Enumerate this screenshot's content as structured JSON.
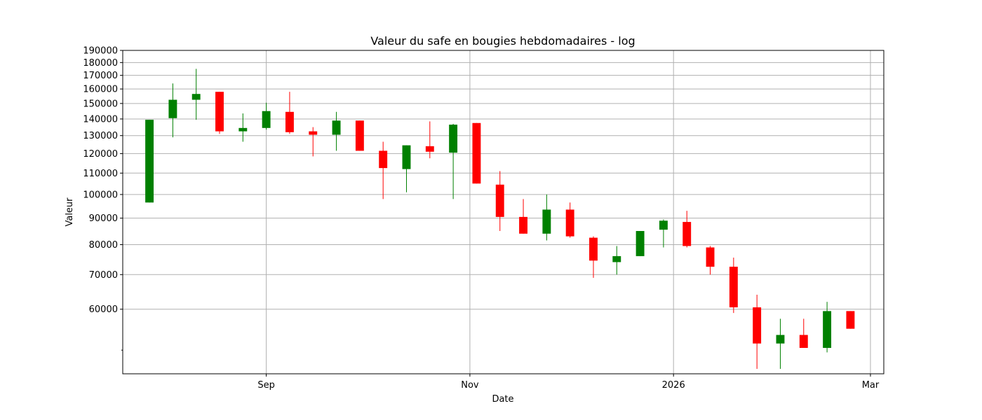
{
  "chart_data": {
    "type": "candlestick",
    "title": "Valeur du safe en bougies hebdomadaires - log",
    "xlabel": "Date",
    "ylabel": "Valeur",
    "y_scale": "log",
    "ylim": [
      45000,
      190000
    ],
    "xlim": [
      "2025-07-20",
      "2026-03-05"
    ],
    "grid": true,
    "up_color": "#008000",
    "down_color": "#ff0000",
    "x_ticks": [
      {
        "date": "2025-09-01",
        "label": "Sep"
      },
      {
        "date": "2025-11-01",
        "label": "Nov"
      },
      {
        "date": "2026-01-01",
        "label": "2026"
      },
      {
        "date": "2026-03-01",
        "label": "Mar"
      }
    ],
    "y_ticks": [
      {
        "value": 60000,
        "label": "60000"
      },
      {
        "value": 70000,
        "label": "70000"
      },
      {
        "value": 80000,
        "label": "80000"
      },
      {
        "value": 90000,
        "label": "90000"
      },
      {
        "value": 100000,
        "label": "100000"
      },
      {
        "value": 110000,
        "label": "110000"
      },
      {
        "value": 120000,
        "label": "120000"
      },
      {
        "value": 130000,
        "label": "130000"
      },
      {
        "value": 140000,
        "label": "140000"
      },
      {
        "value": 150000,
        "label": "150000"
      },
      {
        "value": 160000,
        "label": "160000"
      },
      {
        "value": 170000,
        "label": "170000"
      },
      {
        "value": 180000,
        "label": "180000"
      },
      {
        "value": 190000,
        "label": "190000"
      }
    ],
    "y_minor_ticks": [
      50000
    ],
    "candles": [
      {
        "date": "2025-07-28",
        "open": 96500,
        "high": 139500,
        "low": 96500,
        "close": 139500
      },
      {
        "date": "2025-08-04",
        "open": 140500,
        "high": 164000,
        "low": 129000,
        "close": 152500
      },
      {
        "date": "2025-08-11",
        "open": 152500,
        "high": 175000,
        "low": 139500,
        "close": 156500
      },
      {
        "date": "2025-08-18",
        "open": 158000,
        "high": 158000,
        "low": 131000,
        "close": 132500
      },
      {
        "date": "2025-08-25",
        "open": 132500,
        "high": 143500,
        "low": 126500,
        "close": 134500
      },
      {
        "date": "2025-09-01",
        "open": 134500,
        "high": 150500,
        "low": 133500,
        "close": 145000
      },
      {
        "date": "2025-09-08",
        "open": 144500,
        "high": 158000,
        "low": 131000,
        "close": 132000
      },
      {
        "date": "2025-09-15",
        "open": 132500,
        "high": 135000,
        "low": 118500,
        "close": 130500
      },
      {
        "date": "2025-09-22",
        "open": 130500,
        "high": 144500,
        "low": 121500,
        "close": 139000
      },
      {
        "date": "2025-09-29",
        "open": 139000,
        "high": 139000,
        "low": 121500,
        "close": 121500
      },
      {
        "date": "2025-10-06",
        "open": 121500,
        "high": 126500,
        "low": 98000,
        "close": 112500
      },
      {
        "date": "2025-10-13",
        "open": 112000,
        "high": 124500,
        "low": 101000,
        "close": 124500
      },
      {
        "date": "2025-10-20",
        "open": 124000,
        "high": 138500,
        "low": 117500,
        "close": 121000
      },
      {
        "date": "2025-10-27",
        "open": 120500,
        "high": 137000,
        "low": 98000,
        "close": 136500
      },
      {
        "date": "2025-11-03",
        "open": 137500,
        "high": 137500,
        "low": 105000,
        "close": 105000
      },
      {
        "date": "2025-11-10",
        "open": 104500,
        "high": 111000,
        "low": 85000,
        "close": 90500
      },
      {
        "date": "2025-11-17",
        "open": 90500,
        "high": 98000,
        "low": 84000,
        "close": 84000
      },
      {
        "date": "2025-11-24",
        "open": 84000,
        "high": 100000,
        "low": 81500,
        "close": 93500
      },
      {
        "date": "2025-12-01",
        "open": 93500,
        "high": 96500,
        "low": 82500,
        "close": 83000
      },
      {
        "date": "2025-12-08",
        "open": 82500,
        "high": 83000,
        "low": 69000,
        "close": 74500
      },
      {
        "date": "2025-12-15",
        "open": 74000,
        "high": 79500,
        "low": 70000,
        "close": 76000
      },
      {
        "date": "2025-12-22",
        "open": 76000,
        "high": 85000,
        "low": 76000,
        "close": 85000
      },
      {
        "date": "2025-12-29",
        "open": 85500,
        "high": 89500,
        "low": 79000,
        "close": 89000
      },
      {
        "date": "2026-01-05",
        "open": 88500,
        "high": 93000,
        "low": 79000,
        "close": 79500
      },
      {
        "date": "2026-01-12",
        "open": 79000,
        "high": 79500,
        "low": 70000,
        "close": 72500
      },
      {
        "date": "2026-01-19",
        "open": 72500,
        "high": 75500,
        "low": 59000,
        "close": 60500
      },
      {
        "date": "2026-01-26",
        "open": 60500,
        "high": 64000,
        "low": 46000,
        "close": 51500
      },
      {
        "date": "2026-02-02",
        "open": 51500,
        "high": 57500,
        "low": 46000,
        "close": 53500
      },
      {
        "date": "2026-02-09",
        "open": 53500,
        "high": 57500,
        "low": 50500,
        "close": 50500
      },
      {
        "date": "2026-02-16",
        "open": 50500,
        "high": 62000,
        "low": 49500,
        "close": 59500
      },
      {
        "date": "2026-02-23",
        "open": 59500,
        "high": 59500,
        "low": 55000,
        "close": 55000
      }
    ]
  }
}
